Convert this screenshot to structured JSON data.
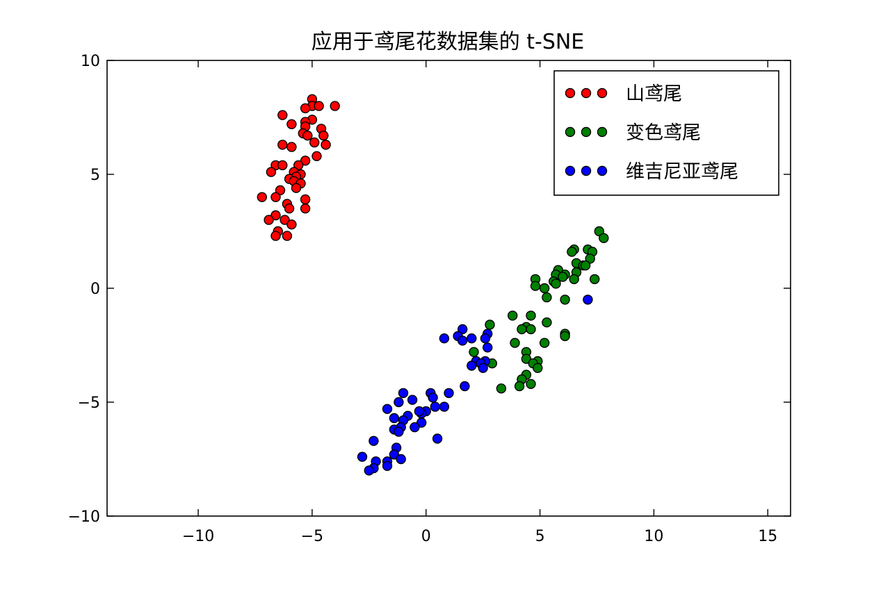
{
  "chart_data": {
    "type": "scatter",
    "title": "应用于鸢尾花数据集的 t-SNE",
    "xlabel": "",
    "ylabel": "",
    "xlim": [
      -14,
      16
    ],
    "ylim": [
      -10,
      10
    ],
    "xticks": [
      -10,
      -5,
      0,
      5,
      10,
      15
    ],
    "yticks": [
      -10,
      -5,
      0,
      5,
      10
    ],
    "xtick_labels": [
      "−10",
      "−5",
      "0",
      "5",
      "10",
      "15"
    ],
    "ytick_labels": [
      "−10",
      "−5",
      "0",
      "5",
      "10"
    ],
    "grid": false,
    "legend_position": "top-right",
    "series": [
      {
        "name": "山鸢尾",
        "color": "#ff0000",
        "points": [
          [
            -5.0,
            8.3
          ],
          [
            -4.0,
            8.0
          ],
          [
            -5.0,
            8.0
          ],
          [
            -4.7,
            8.0
          ],
          [
            -5.3,
            7.9
          ],
          [
            -6.3,
            7.6
          ],
          [
            -5.0,
            7.4
          ],
          [
            -5.3,
            7.3
          ],
          [
            -5.9,
            7.2
          ],
          [
            -5.3,
            7.1
          ],
          [
            -4.6,
            7.0
          ],
          [
            -5.4,
            6.8
          ],
          [
            -4.5,
            6.7
          ],
          [
            -5.2,
            6.7
          ],
          [
            -4.9,
            6.4
          ],
          [
            -4.4,
            6.3
          ],
          [
            -6.3,
            6.3
          ],
          [
            -5.9,
            6.2
          ],
          [
            -4.8,
            5.8
          ],
          [
            -5.3,
            5.6
          ],
          [
            -6.6,
            5.4
          ],
          [
            -6.3,
            5.4
          ],
          [
            -5.6,
            5.4
          ],
          [
            -6.8,
            5.1
          ],
          [
            -5.8,
            5.1
          ],
          [
            -5.5,
            5.0
          ],
          [
            -5.7,
            4.9
          ],
          [
            -6.0,
            4.8
          ],
          [
            -5.8,
            4.7
          ],
          [
            -5.5,
            4.6
          ],
          [
            -5.7,
            4.4
          ],
          [
            -6.4,
            4.3
          ],
          [
            -7.2,
            4.0
          ],
          [
            -6.6,
            4.0
          ],
          [
            -5.3,
            3.9
          ],
          [
            -6.1,
            3.7
          ],
          [
            -6.0,
            3.5
          ],
          [
            -5.3,
            3.5
          ],
          [
            -6.6,
            3.2
          ],
          [
            -6.9,
            3.0
          ],
          [
            -6.2,
            3.0
          ],
          [
            -5.9,
            2.8
          ],
          [
            -6.5,
            2.5
          ],
          [
            -6.1,
            2.3
          ],
          [
            -6.6,
            2.3
          ]
        ]
      },
      {
        "name": "变色鸢尾",
        "color": "#008000",
        "points": [
          [
            7.6,
            2.5
          ],
          [
            7.8,
            2.2
          ],
          [
            6.5,
            1.7
          ],
          [
            7.1,
            1.7
          ],
          [
            7.3,
            1.6
          ],
          [
            6.4,
            1.6
          ],
          [
            7.2,
            1.3
          ],
          [
            6.6,
            1.1
          ],
          [
            6.9,
            1.0
          ],
          [
            7.0,
            1.0
          ],
          [
            5.8,
            0.8
          ],
          [
            6.6,
            0.7
          ],
          [
            6.1,
            0.6
          ],
          [
            5.7,
            0.6
          ],
          [
            6.0,
            0.5
          ],
          [
            6.5,
            0.4
          ],
          [
            7.4,
            0.4
          ],
          [
            4.8,
            0.4
          ],
          [
            5.6,
            0.3
          ],
          [
            5.7,
            0.2
          ],
          [
            4.8,
            0.1
          ],
          [
            5.2,
            0.0
          ],
          [
            5.3,
            -0.4
          ],
          [
            6.1,
            -0.5
          ],
          [
            3.8,
            -1.2
          ],
          [
            4.6,
            -1.2
          ],
          [
            5.3,
            -1.5
          ],
          [
            2.8,
            -1.6
          ],
          [
            4.4,
            -1.7
          ],
          [
            4.2,
            -1.8
          ],
          [
            4.6,
            -1.8
          ],
          [
            6.1,
            -2.0
          ],
          [
            6.1,
            -2.1
          ],
          [
            3.9,
            -2.4
          ],
          [
            5.2,
            -2.4
          ],
          [
            4.4,
            -2.8
          ],
          [
            2.1,
            -2.8
          ],
          [
            4.4,
            -3.1
          ],
          [
            4.9,
            -3.2
          ],
          [
            4.7,
            -3.3
          ],
          [
            2.9,
            -3.3
          ],
          [
            4.9,
            -3.5
          ],
          [
            4.4,
            -3.8
          ],
          [
            4.2,
            -4.0
          ],
          [
            4.6,
            -4.2
          ],
          [
            4.1,
            -4.3
          ],
          [
            3.3,
            -4.4
          ]
        ]
      },
      {
        "name": "维吉尼亚鸢尾",
        "color": "#0000ff",
        "points": [
          [
            7.1,
            -0.5
          ],
          [
            1.6,
            -1.8
          ],
          [
            2.7,
            -2.0
          ],
          [
            1.4,
            -2.1
          ],
          [
            2.6,
            -2.2
          ],
          [
            0.8,
            -2.2
          ],
          [
            1.6,
            -2.3
          ],
          [
            2.0,
            -2.2
          ],
          [
            2.7,
            -2.6
          ],
          [
            2.2,
            -3.2
          ],
          [
            2.6,
            -3.2
          ],
          [
            2.4,
            -3.3
          ],
          [
            2.0,
            -3.4
          ],
          [
            2.5,
            -3.5
          ],
          [
            1.7,
            -4.3
          ],
          [
            1.0,
            -4.6
          ],
          [
            0.2,
            -4.6
          ],
          [
            -1.0,
            -4.6
          ],
          [
            0.3,
            -4.8
          ],
          [
            -0.6,
            -4.9
          ],
          [
            -1.2,
            -5.0
          ],
          [
            0.4,
            -5.2
          ],
          [
            0.8,
            -5.2
          ],
          [
            -1.7,
            -5.3
          ],
          [
            0.0,
            -5.4
          ],
          [
            -0.2,
            -5.5
          ],
          [
            -0.3,
            -5.4
          ],
          [
            -0.8,
            -5.6
          ],
          [
            -1.4,
            -5.7
          ],
          [
            -1.0,
            -5.8
          ],
          [
            -0.2,
            -5.9
          ],
          [
            -0.5,
            -6.1
          ],
          [
            -1.1,
            -6.1
          ],
          [
            -1.4,
            -6.2
          ],
          [
            -1.2,
            -6.3
          ],
          [
            0.5,
            -6.6
          ],
          [
            -2.3,
            -6.7
          ],
          [
            -1.3,
            -7.0
          ],
          [
            -1.4,
            -7.3
          ],
          [
            -2.8,
            -7.4
          ],
          [
            -1.1,
            -7.5
          ],
          [
            -2.2,
            -7.6
          ],
          [
            -1.7,
            -7.6
          ],
          [
            -1.7,
            -7.8
          ],
          [
            -2.3,
            -7.9
          ],
          [
            -2.5,
            -8.0
          ]
        ]
      }
    ]
  }
}
